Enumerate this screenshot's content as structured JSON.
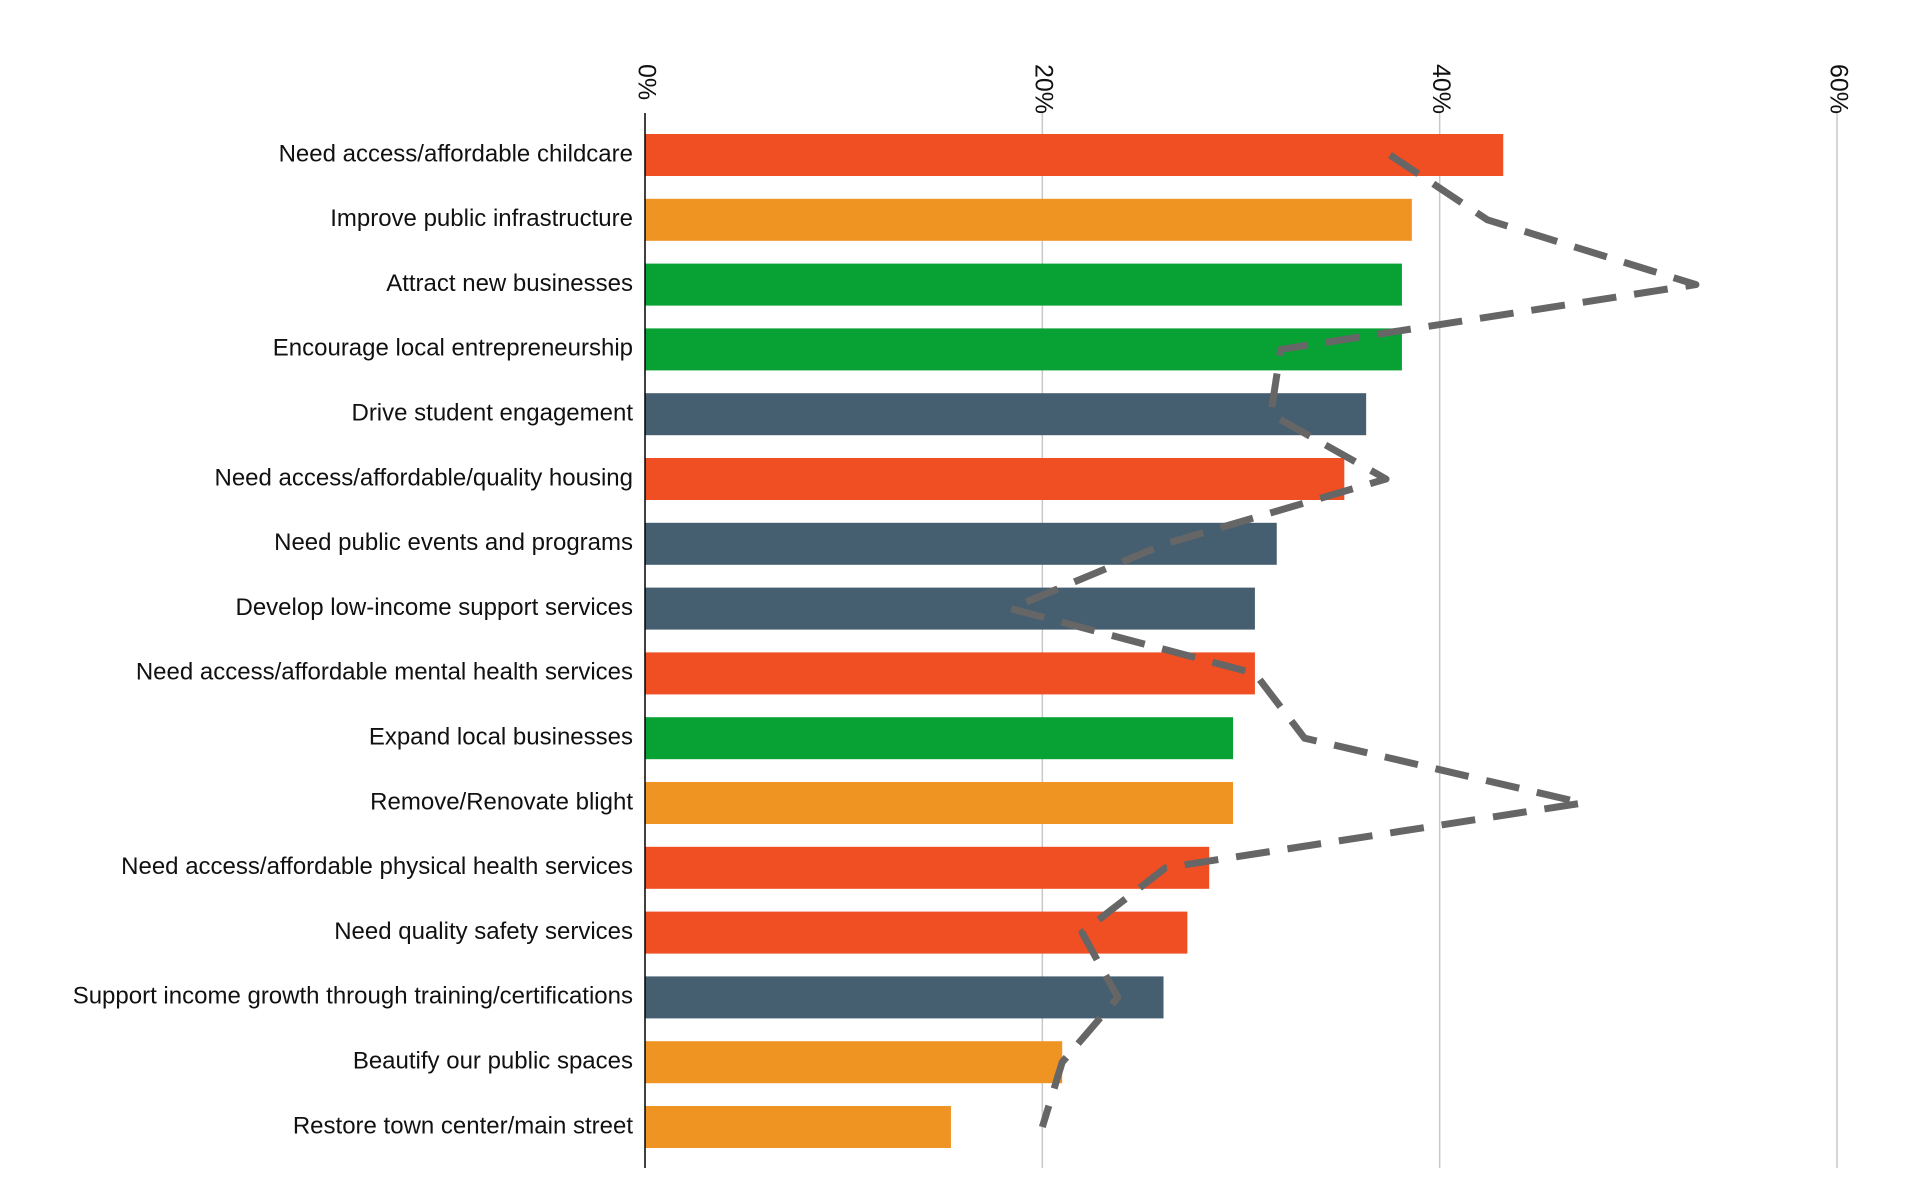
{
  "chart_data": {
    "type": "bar",
    "orientation": "horizontal",
    "title": "",
    "xlabel": "",
    "ylabel": "",
    "xlim": [
      0,
      60
    ],
    "x_ticks": [
      0,
      20,
      40,
      60
    ],
    "x_tick_labels": [
      "0%",
      "20%",
      "40%",
      "60%"
    ],
    "grid": true,
    "legend": "none",
    "categories": [
      "Need access/affordable childcare",
      "Improve public infrastructure",
      "Attract new businesses",
      "Encourage local entrepreneurship",
      "Drive student engagement",
      "Need access/affordable/quality housing",
      "Need public events and programs",
      "Develop low-income support services",
      "Need access/affordable mental health services",
      "Expand local businesses",
      "Remove/Renovate blight",
      "Need access/affordable physical health services",
      "Need quality safety services",
      "Support income growth through training/certifications",
      "Beautify our public spaces",
      "Restore town center/main street"
    ],
    "values": [
      43.2,
      38.6,
      38.1,
      38.1,
      36.3,
      35.2,
      31.8,
      30.7,
      30.7,
      29.6,
      29.6,
      28.4,
      27.3,
      26.1,
      21.0,
      15.4
    ],
    "bar_groups": [
      "red",
      "orange",
      "green",
      "green",
      "slate",
      "red",
      "slate",
      "slate",
      "red",
      "green",
      "orange",
      "red",
      "red",
      "slate",
      "orange",
      "orange"
    ],
    "colors": {
      "red": "#f04e23",
      "orange": "#ef9423",
      "green": "#08a134",
      "slate": "#465f70"
    },
    "trend_series": {
      "style": "dashed",
      "color": "#666666",
      "values": [
        37.5,
        42.4,
        52.9,
        32.0,
        31.5,
        37.3,
        26.2,
        18.4,
        30.7,
        33.2,
        47.2,
        26.2,
        22.0,
        23.8,
        21.0,
        20.0
      ]
    }
  }
}
